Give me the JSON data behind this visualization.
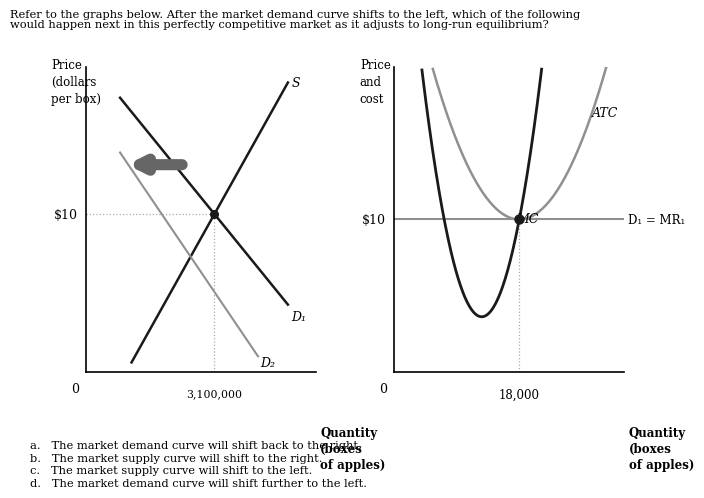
{
  "title_line1": "Refer to the graphs below. After the market demand curve shifts to the left, which of the following",
  "title_line2": "would happen next in this perfectly competitive market as it adjusts to long-run equilibrium?",
  "left_ylabel": "Price\n(dollars\nper box)",
  "right_ylabel": "Price\nand\ncost",
  "xlabel": "Quantity\n(boxes\nof apples)",
  "price_10": "$10",
  "qty_3100000": "3,100,000",
  "qty_18000": "18,000",
  "supply_label": "S",
  "d1_label": "D₁",
  "d2_label": "D₂",
  "mc_label": "MC",
  "atc_label": "ATC",
  "d1_mr1_label": "D₁ = MR₁",
  "answer_a": "a.   The market demand curve will shift back to the right.",
  "answer_b": "b.   The market supply curve will shift to the right.",
  "answer_c": "c.   The market supply curve will shift to the left.",
  "answer_d": "d.   The market demand curve will shift further to the left.",
  "bg_color": "#ffffff",
  "line_dark": "#1a1a1a",
  "line_gray": "#909090",
  "dot_color": "#aaaaaa"
}
